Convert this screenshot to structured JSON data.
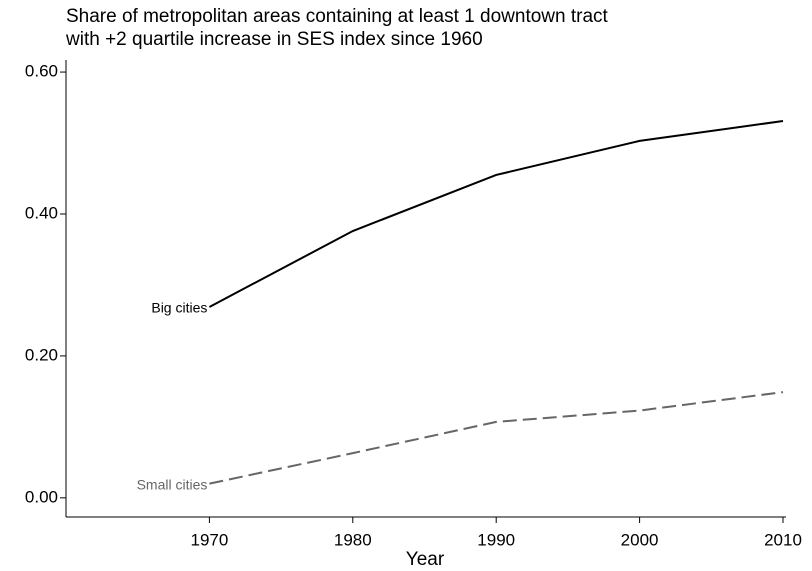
{
  "chart_data": {
    "type": "line",
    "title": [
      "Share of metropolitan areas containing at least 1 downtown tract",
      "with +2 quartile increase in SES index since 1960"
    ],
    "x_label": "Year",
    "x": [
      1970,
      1980,
      1990,
      2000,
      2010
    ],
    "series": [
      {
        "name": "Big cities",
        "color": "#000000",
        "line_style": "solid",
        "values": [
          0.269,
          0.376,
          0.455,
          0.503,
          0.531
        ]
      },
      {
        "name": "Small cities",
        "color": "#666666",
        "line_style": "dashed",
        "values": [
          0.02,
          0.063,
          0.107,
          0.123,
          0.149
        ]
      }
    ],
    "xlim": [
      1960,
      2010
    ],
    "ylim": [
      -0.027,
      0.617
    ],
    "xticks": [
      1970,
      1980,
      1990,
      2000,
      2010
    ],
    "yticks": [
      {
        "value": 0,
        "label": "0.00"
      },
      {
        "value": 0.2,
        "label": "0.20"
      },
      {
        "value": 0.4,
        "label": "0.40"
      },
      {
        "value": 0.6,
        "label": "0.60"
      }
    ],
    "grid": false
  }
}
